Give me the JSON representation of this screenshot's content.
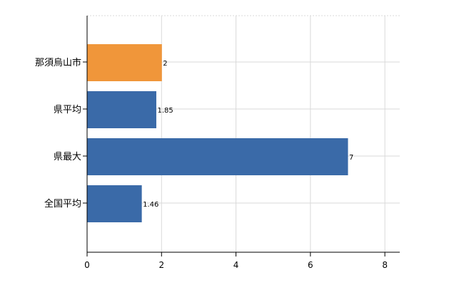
{
  "chart_data": {
    "type": "bar",
    "orientation": "horizontal",
    "categories": [
      "那須烏山市",
      "県平均",
      "県最大",
      "全国平均"
    ],
    "values": [
      2,
      1.85,
      7,
      1.46
    ],
    "value_labels": [
      "2",
      "1.85",
      "7",
      "1.46"
    ],
    "bar_colors": [
      "#f0963a",
      "#3a6aa8",
      "#3a6aa8",
      "#3a6aa8"
    ],
    "xlim": [
      0,
      8.4
    ],
    "xticks": [
      0,
      2,
      4,
      6,
      8
    ],
    "xtick_labels": [
      "0",
      "2",
      "4",
      "6",
      "8"
    ],
    "grid": true
  }
}
